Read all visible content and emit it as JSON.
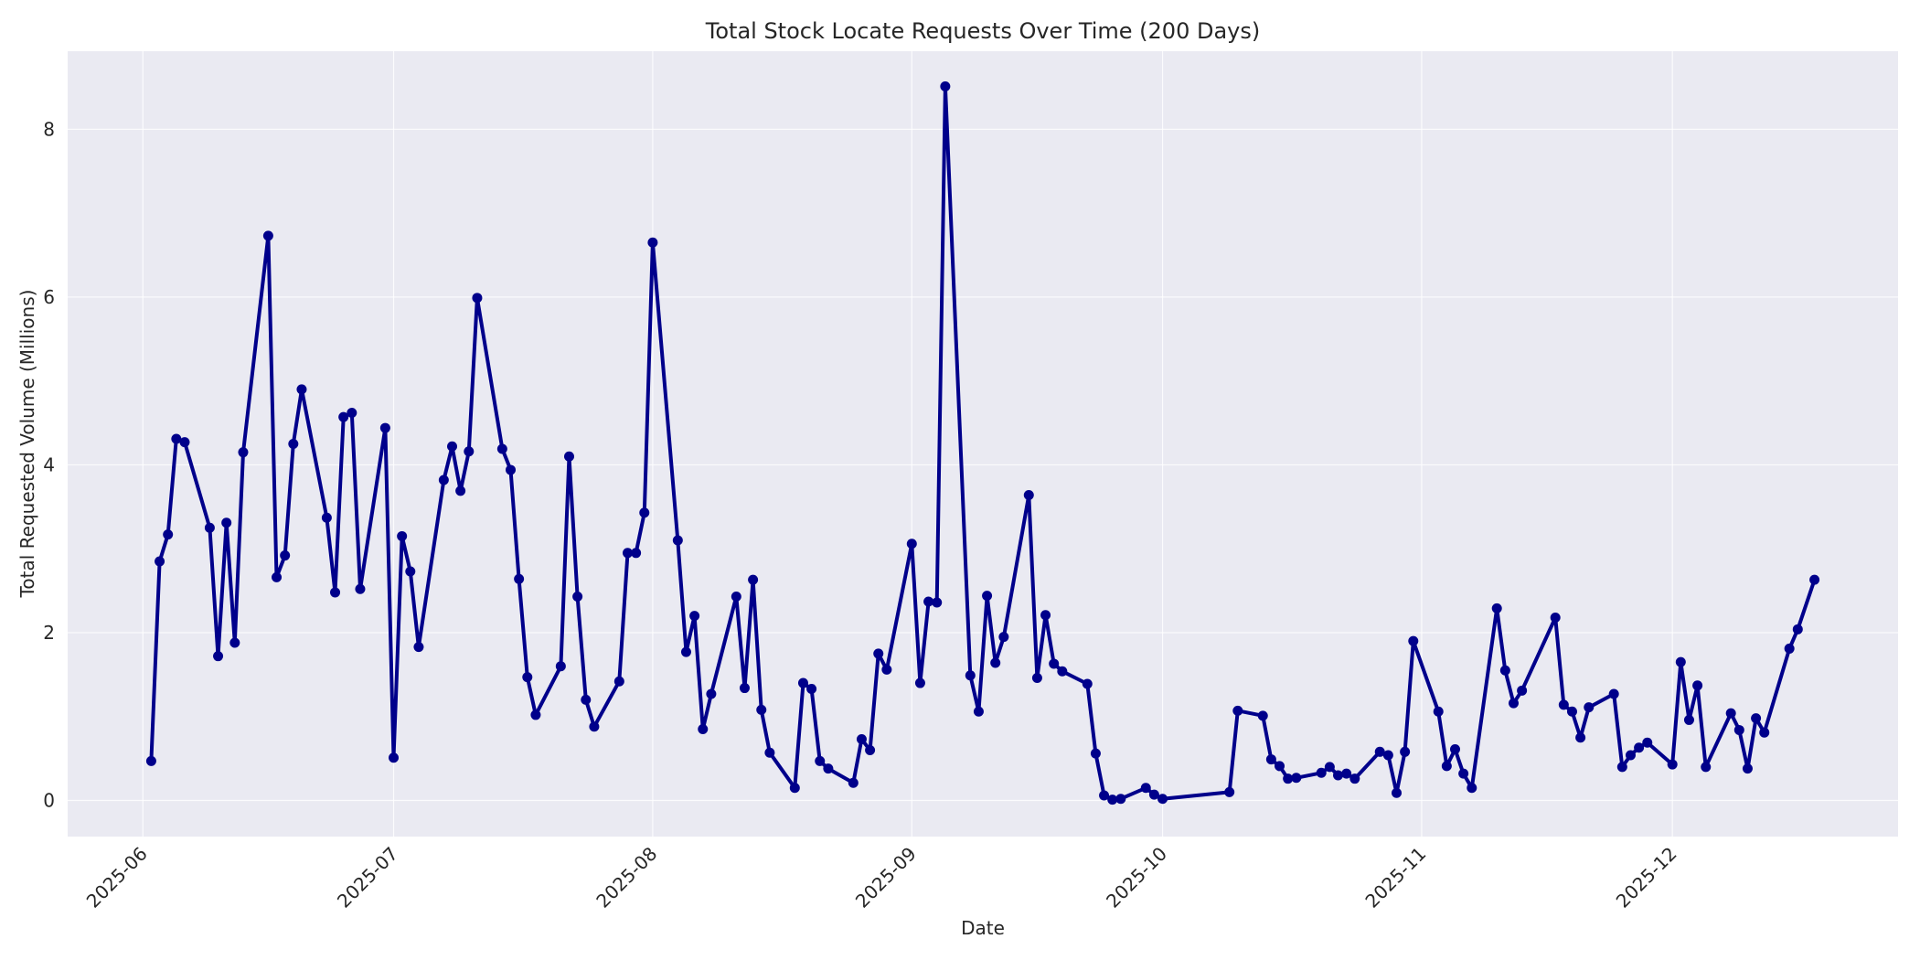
{
  "chart_data": {
    "type": "line",
    "title": "Total Stock Locate Requests Over Time (200 Days)",
    "xlabel": "Date",
    "ylabel": "Total Requested Volume (Millions)",
    "ylim": [
      -0.43,
      8.93
    ],
    "xlim_days_from_2025_06_01": [
      -9,
      210
    ],
    "yticks": [
      0,
      2,
      4,
      6,
      8
    ],
    "xticks": [
      "2025-06",
      "2025-07",
      "2025-08",
      "2025-09",
      "2025-10",
      "2025-11",
      "2025-12"
    ],
    "grid": true,
    "legend": null,
    "line_color": "#00008b",
    "background_color": "#eaeaf2",
    "marker": "circle",
    "series": [
      {
        "name": "Total Requested Volume",
        "x": [
          "2025-06-02",
          "2025-06-03",
          "2025-06-04",
          "2025-06-05",
          "2025-06-06",
          "2025-06-09",
          "2025-06-10",
          "2025-06-11",
          "2025-06-12",
          "2025-06-13",
          "2025-06-16",
          "2025-06-17",
          "2025-06-18",
          "2025-06-19",
          "2025-06-20",
          "2025-06-23",
          "2025-06-24",
          "2025-06-25",
          "2025-06-26",
          "2025-06-27",
          "2025-06-30",
          "2025-07-01",
          "2025-07-02",
          "2025-07-03",
          "2025-07-04",
          "2025-07-07",
          "2025-07-08",
          "2025-07-09",
          "2025-07-10",
          "2025-07-11",
          "2025-07-14",
          "2025-07-15",
          "2025-07-16",
          "2025-07-17",
          "2025-07-18",
          "2025-07-21",
          "2025-07-22",
          "2025-07-23",
          "2025-07-24",
          "2025-07-25",
          "2025-07-28",
          "2025-07-29",
          "2025-07-30",
          "2025-07-31",
          "2025-08-01",
          "2025-08-04",
          "2025-08-05",
          "2025-08-06",
          "2025-08-07",
          "2025-08-08",
          "2025-08-11",
          "2025-08-12",
          "2025-08-13",
          "2025-08-14",
          "2025-08-15",
          "2025-08-18",
          "2025-08-19",
          "2025-08-20",
          "2025-08-21",
          "2025-08-22",
          "2025-08-25",
          "2025-08-26",
          "2025-08-27",
          "2025-08-28",
          "2025-08-29",
          "2025-09-01",
          "2025-09-02",
          "2025-09-03",
          "2025-09-04",
          "2025-09-05",
          "2025-09-08",
          "2025-09-09",
          "2025-09-10",
          "2025-09-11",
          "2025-09-12",
          "2025-09-15",
          "2025-09-16",
          "2025-09-17",
          "2025-09-18",
          "2025-09-19",
          "2025-09-22",
          "2025-09-23",
          "2025-09-24",
          "2025-09-25",
          "2025-09-26",
          "2025-09-29",
          "2025-09-30",
          "2025-10-01",
          "2025-10-09",
          "2025-10-10",
          "2025-10-13",
          "2025-10-14",
          "2025-10-15",
          "2025-10-16",
          "2025-10-17",
          "2025-10-20",
          "2025-10-21",
          "2025-10-22",
          "2025-10-23",
          "2025-10-24",
          "2025-10-27",
          "2025-10-28",
          "2025-10-29",
          "2025-10-30",
          "2025-10-31",
          "2025-11-03",
          "2025-11-04",
          "2025-11-05",
          "2025-11-06",
          "2025-11-07",
          "2025-11-10",
          "2025-11-11",
          "2025-11-12",
          "2025-11-13",
          "2025-11-17",
          "2025-11-18",
          "2025-11-19",
          "2025-11-20",
          "2025-11-21",
          "2025-11-24",
          "2025-11-25",
          "2025-11-26",
          "2025-11-27",
          "2025-11-28",
          "2025-12-01",
          "2025-12-02",
          "2025-12-03",
          "2025-12-04",
          "2025-12-05",
          "2025-12-08",
          "2025-12-09",
          "2025-12-10",
          "2025-12-11",
          "2025-12-12",
          "2025-12-15",
          "2025-12-16",
          "2025-12-18"
        ],
        "values": [
          0.47,
          2.85,
          3.17,
          4.31,
          4.27,
          3.25,
          1.72,
          3.31,
          1.88,
          4.15,
          6.73,
          2.66,
          2.92,
          4.25,
          4.9,
          3.37,
          2.48,
          4.57,
          4.62,
          2.52,
          4.44,
          0.51,
          3.15,
          2.73,
          1.83,
          3.82,
          4.22,
          3.69,
          4.16,
          5.99,
          4.19,
          3.94,
          2.64,
          1.47,
          1.02,
          1.6,
          4.1,
          2.43,
          1.2,
          0.88,
          1.42,
          2.95,
          2.95,
          3.43,
          6.65,
          3.1,
          1.77,
          2.2,
          0.85,
          1.27,
          2.43,
          1.34,
          2.63,
          1.08,
          0.57,
          0.15,
          1.4,
          1.33,
          0.47,
          0.38,
          0.21,
          0.73,
          0.6,
          1.75,
          1.56,
          3.06,
          1.4,
          2.37,
          2.36,
          8.51,
          1.49,
          1.06,
          2.44,
          1.64,
          1.95,
          3.64,
          1.46,
          2.21,
          1.63,
          1.54,
          1.39,
          0.56,
          0.06,
          0.01,
          0.02,
          0.15,
          0.07,
          0.02,
          0.1,
          1.07,
          1.01,
          0.49,
          0.41,
          0.26,
          0.27,
          0.33,
          0.4,
          0.3,
          0.32,
          0.26,
          0.58,
          0.54,
          0.09,
          0.58,
          1.9,
          1.06,
          0.41,
          0.61,
          0.32,
          0.15,
          2.29,
          1.55,
          1.16,
          1.31,
          2.18,
          1.14,
          1.06,
          0.75,
          1.11,
          1.27,
          0.4,
          0.54,
          0.63,
          0.69,
          0.43,
          1.65,
          0.96,
          1.37,
          0.4,
          1.04,
          0.84,
          0.38,
          0.98,
          0.81,
          1.81,
          2.04,
          2.63
        ]
      }
    ]
  }
}
